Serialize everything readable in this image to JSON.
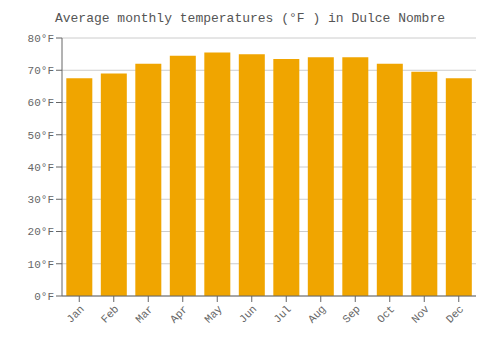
{
  "chart_data": {
    "type": "bar",
    "title": "Average monthly temperatures (°F ) in Dulce Nombre",
    "categories": [
      "Jan",
      "Feb",
      "Mar",
      "Apr",
      "May",
      "Jun",
      "Jul",
      "Aug",
      "Sep",
      "Oct",
      "Nov",
      "Dec"
    ],
    "values": [
      67.5,
      69.0,
      72.0,
      74.5,
      75.5,
      75.0,
      73.5,
      74.0,
      74.0,
      72.0,
      69.5,
      67.5
    ],
    "color": "#F0A500",
    "ylim": [
      0,
      80
    ],
    "yticks": [
      {
        "value": 0,
        "label": "0°F"
      },
      {
        "value": 10,
        "label": "10°F"
      },
      {
        "value": 20,
        "label": "20°F"
      },
      {
        "value": 30,
        "label": "30°F"
      },
      {
        "value": 40,
        "label": "40°F"
      },
      {
        "value": 50,
        "label": "50°F"
      },
      {
        "value": 60,
        "label": "60°F"
      },
      {
        "value": 70,
        "label": "70°F"
      },
      {
        "value": 80,
        "label": "80°F"
      }
    ],
    "grid": true
  }
}
